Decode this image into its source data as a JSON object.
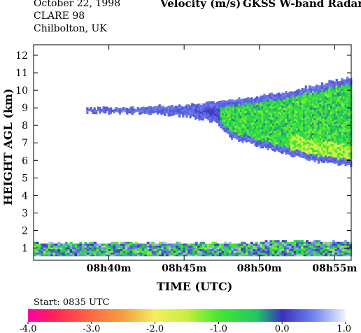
{
  "header": {
    "date": "October  22, 1998",
    "campaign": "CLARE 98",
    "location": "Chilbolton, UK",
    "quantity": "Velocity (m/s)",
    "instrument": "GKSS  W-band Radar"
  },
  "chart_data": {
    "type": "heatmap",
    "title": "Velocity (m/s)",
    "xlabel": "TIME (UTC)",
    "ylabel": "HEIGHT AGL (km)",
    "x_ticks": [
      "08h40m",
      "08h45m",
      "08h50m",
      "08h55m"
    ],
    "x_tick_minutes": [
      40,
      45,
      50,
      55
    ],
    "xlim_minutes_after_0800": [
      35,
      56.1
    ],
    "y_ticks": [
      1,
      2,
      3,
      4,
      5,
      6,
      7,
      8,
      9,
      10,
      11,
      12
    ],
    "ylim": [
      0.3,
      12.6
    ],
    "colorbar": {
      "start_label": "Start: 0835 UTC",
      "tick_labels": [
        "-4.0",
        "-3.0",
        "-2.0",
        "-1.0",
        "0.0",
        "1.0"
      ],
      "ticks": [
        -4,
        -3,
        -2,
        -1,
        0,
        1
      ],
      "range": [
        -4,
        1
      ],
      "stops": [
        {
          "v": -4.0,
          "c": "#ff00aa"
        },
        {
          "v": -3.6,
          "c": "#ff2255"
        },
        {
          "v": -3.0,
          "c": "#ff6a44"
        },
        {
          "v": -2.5,
          "c": "#f2a040"
        },
        {
          "v": -2.0,
          "c": "#f3ee60"
        },
        {
          "v": -1.5,
          "c": "#c8ee40"
        },
        {
          "v": -1.0,
          "c": "#44e830"
        },
        {
          "v": -0.4,
          "c": "#20c860"
        },
        {
          "v": 0.0,
          "c": "#3a30c0"
        },
        {
          "v": 0.5,
          "c": "#6f84f0"
        },
        {
          "v": 1.0,
          "c": "#f0f4ff"
        }
      ]
    },
    "cloud_layer": {
      "description_level": "upper ice cloud",
      "top_km": [
        [
          38.5,
          8.95
        ],
        [
          42,
          8.95
        ],
        [
          45,
          9.1
        ],
        [
          48,
          9.4
        ],
        [
          50,
          9.6
        ],
        [
          52,
          9.9
        ],
        [
          54,
          10.3
        ],
        [
          56.1,
          10.7
        ]
      ],
      "base_km": [
        [
          38.5,
          8.75
        ],
        [
          42,
          8.7
        ],
        [
          45,
          8.55
        ],
        [
          47,
          8.2
        ],
        [
          48,
          7.3
        ],
        [
          50,
          6.8
        ],
        [
          52,
          6.3
        ],
        [
          54,
          5.9
        ],
        [
          56.1,
          5.7
        ]
      ],
      "typical_velocity_ms": [
        -1.2,
        -0.5,
        0.3
      ]
    },
    "ground_clutter_km": [
      0.55,
      1.25
    ]
  }
}
